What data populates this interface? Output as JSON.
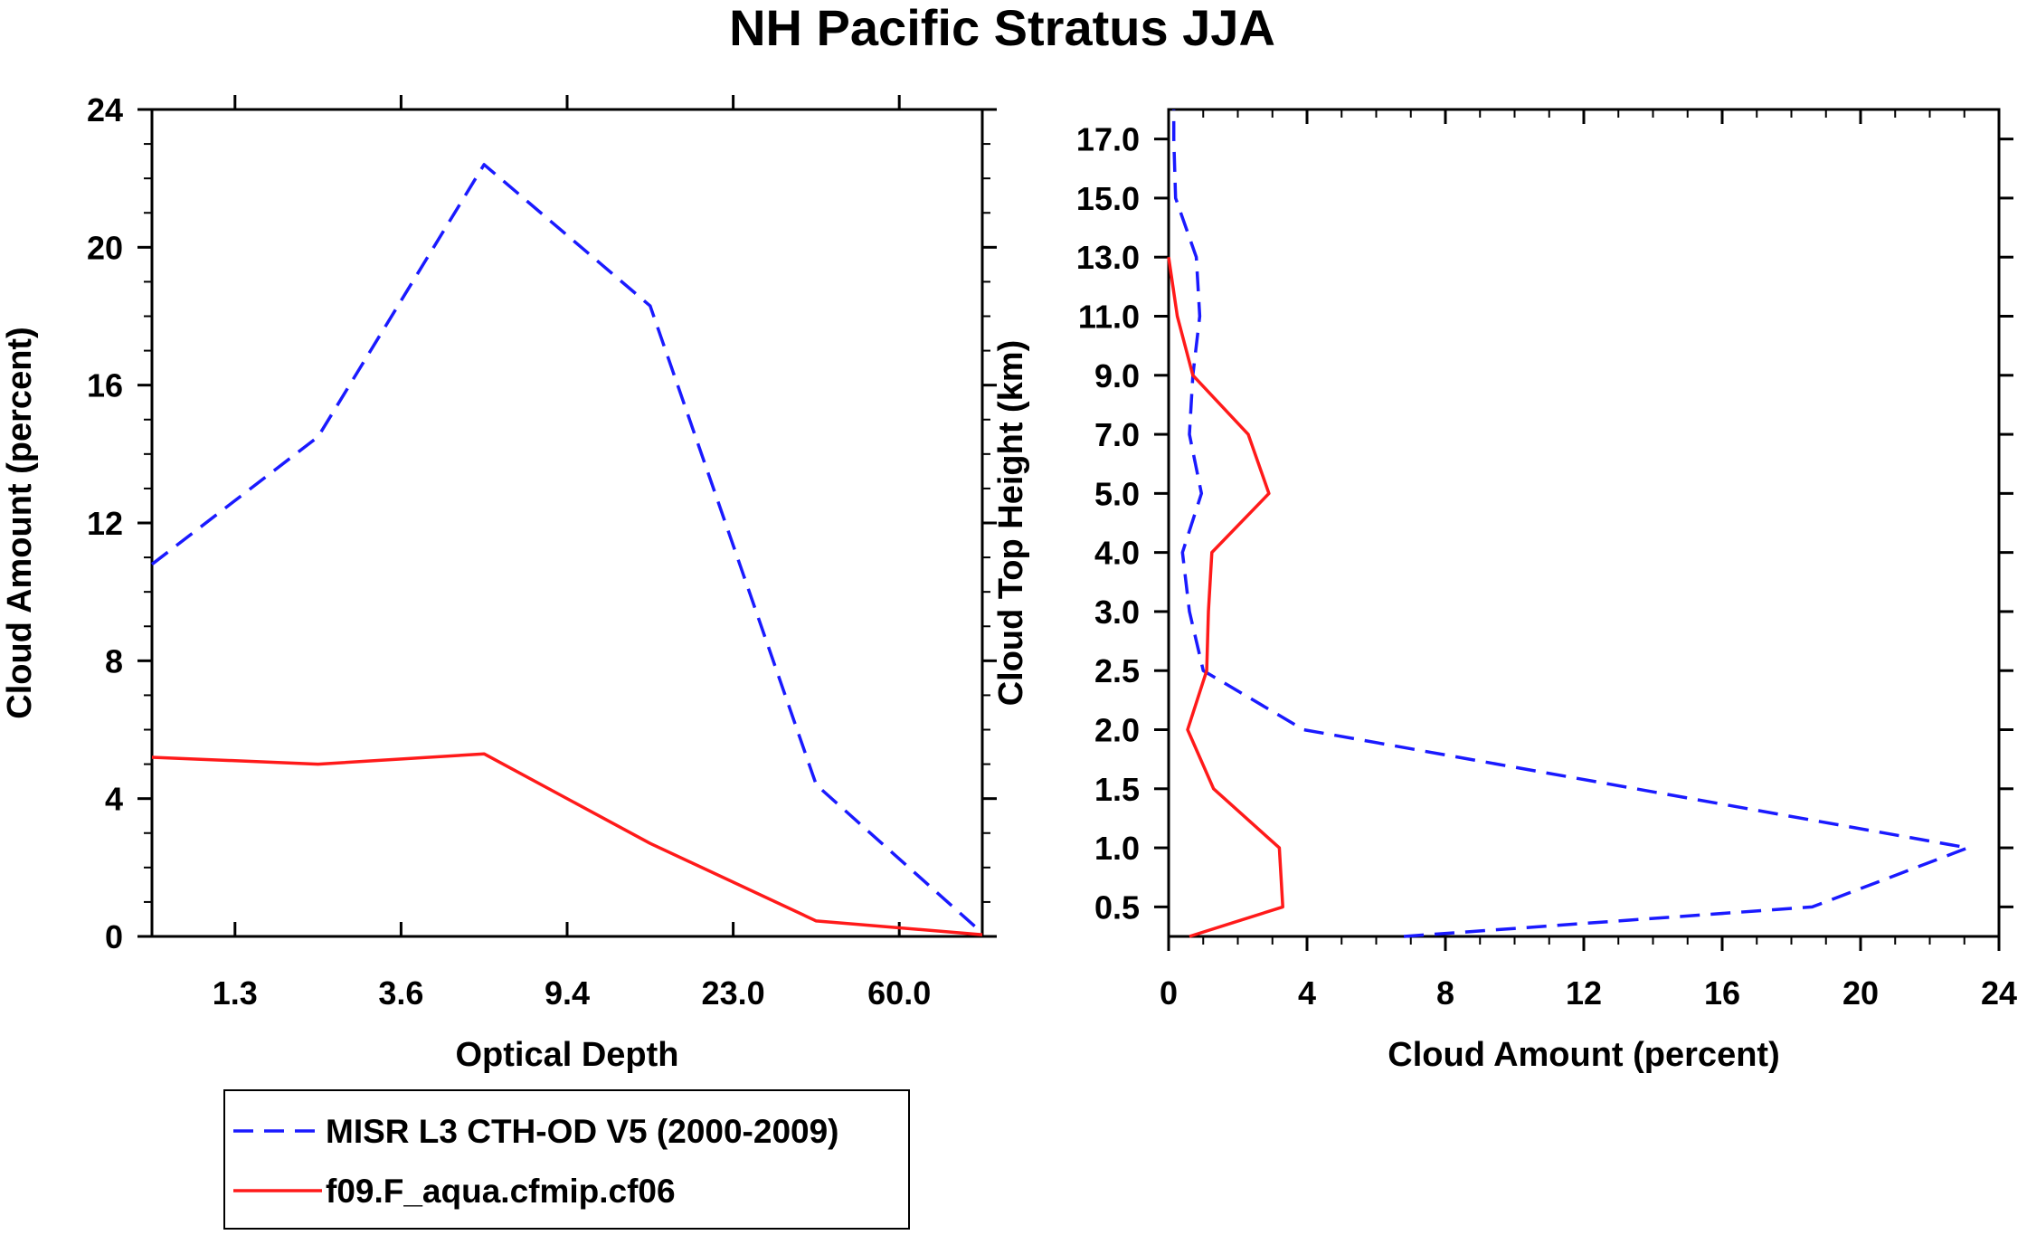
{
  "figure": {
    "title": "NH Pacific Stratus JJA"
  },
  "colors": {
    "misr": "#1a1aff",
    "model": "#ff1a1a",
    "axis": "#000000"
  },
  "legend": {
    "placement": "bottom-left",
    "entries": [
      {
        "label": "MISR L3 CTH-OD V5 (2000-2009)",
        "color": "#1a1aff",
        "style": "dashed"
      },
      {
        "label": "f09.F_aqua.cfmip.cf06",
        "color": "#ff1a1a",
        "style": "solid"
      }
    ]
  },
  "chart_data": [
    {
      "type": "line",
      "xlabel": "Optical Depth",
      "ylabel": "Cloud Amount (percent)",
      "x": [
        0,
        1,
        2,
        3,
        4,
        5
      ],
      "xlim": [
        0,
        5
      ],
      "xticks": [
        0.5,
        1.5,
        2.5,
        3.5,
        4.5
      ],
      "xtick_labels": [
        "1.3",
        "3.6",
        "9.4",
        "23.0",
        "60.0"
      ],
      "ylim": [
        0,
        24
      ],
      "yticks": [
        0,
        4,
        8,
        12,
        16,
        20,
        24
      ],
      "ytick_labels": [
        "0",
        "4",
        "8",
        "12",
        "16",
        "20",
        "24"
      ],
      "series": [
        {
          "name": "MISR L3 CTH-OD V5 (2000-2009)",
          "values": [
            10.8,
            14.5,
            22.4,
            18.3,
            4.4,
            0.1
          ]
        },
        {
          "name": "f09.F_aqua.cfmip.cf06",
          "values": [
            5.2,
            5.0,
            5.3,
            2.7,
            0.45,
            0.05
          ]
        }
      ]
    },
    {
      "type": "line",
      "orientation": "horizontal",
      "xlabel": "Cloud Amount (percent)",
      "ylabel": "Cloud Top Height (km)",
      "xlim": [
        0,
        24
      ],
      "xticks": [
        0,
        4,
        8,
        12,
        16,
        20,
        24
      ],
      "xtick_labels": [
        "0",
        "4",
        "8",
        "12",
        "16",
        "20",
        "24"
      ],
      "ylim": [
        0,
        14
      ],
      "y": [
        0,
        0.5,
        1.5,
        2.5,
        3.5,
        4.5,
        5.5,
        6.5,
        7.5,
        8.5,
        9.5,
        10.5,
        11.5,
        12.5,
        13.5,
        14
      ],
      "yticks": [
        0.5,
        1.5,
        2.5,
        3.5,
        4.5,
        5.5,
        6.5,
        7.5,
        8.5,
        9.5,
        10.5,
        11.5,
        12.5,
        13.5
      ],
      "ytick_labels": [
        "0.5",
        "1.0",
        "1.5",
        "2.0",
        "2.5",
        "3.0",
        "4.0",
        "5.0",
        "7.0",
        "9.0",
        "11.0",
        "13.0",
        "15.0",
        "17.0"
      ],
      "series": [
        {
          "name": "MISR L3 CTH-OD V5 (2000-2009)",
          "values": [
            6.8,
            18.6,
            23.1,
            null,
            3.9,
            1.0,
            0.6,
            0.4,
            0.95,
            0.6,
            0.7,
            0.9,
            0.8,
            0.2,
            0.15,
            0.15
          ]
        },
        {
          "name": "f09.F_aqua.cfmip.cf06",
          "values": [
            0.6,
            3.3,
            3.2,
            1.3,
            0.55,
            1.1,
            1.15,
            1.25,
            2.9,
            2.3,
            0.7,
            0.25,
            0.0,
            null,
            null,
            null
          ]
        }
      ]
    }
  ]
}
